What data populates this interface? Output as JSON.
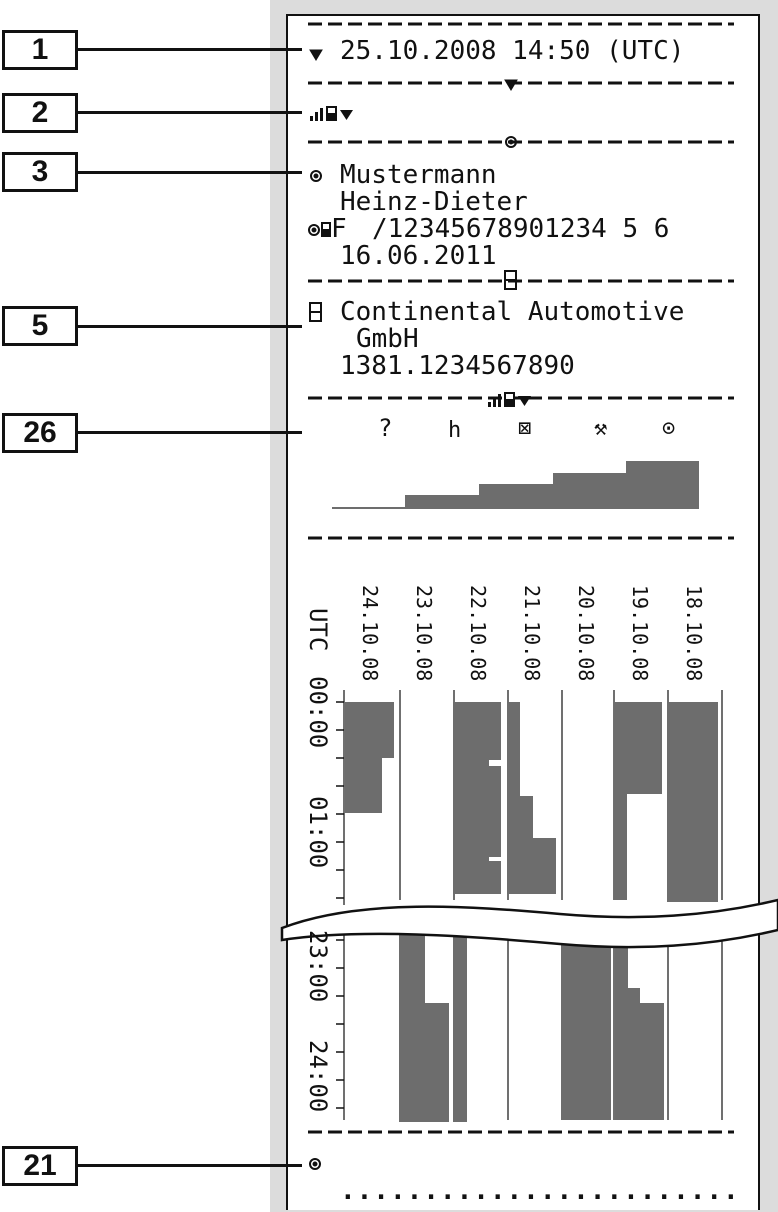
{
  "callouts": [
    "1",
    "2",
    "3",
    "5",
    "26",
    "21"
  ],
  "header": {
    "datetime": "25.10.2008 14:50 (UTC)"
  },
  "driver": {
    "surname": "Mustermann",
    "firstname": "Heinz-Dieter",
    "card_country": "F",
    "card_number": "/12345678901234 5 6",
    "expiry": "16.06.2011"
  },
  "manufacturer": {
    "name_line1": "Continental Automotive",
    "name_line2": "GmbH",
    "part_number": "1381.1234567890"
  },
  "activity_symbols": [
    "?",
    "h",
    "⊠",
    "⚒",
    "⊙"
  ],
  "chart_data": {
    "type": "bar",
    "x_axis_label": "UTC",
    "day_labels": [
      "24.10.08",
      "23.10.08",
      "22.10.08",
      "21.10.08",
      "20.10.08",
      "19.10.08",
      "18.10.08"
    ],
    "time_ticks_top": [
      "00:00",
      "01:00"
    ],
    "time_ticks_bottom": [
      "23:00",
      "24:00"
    ],
    "summary_levels": [
      1,
      2,
      3,
      4,
      5
    ]
  },
  "footer": {
    "dots": "........................"
  },
  "colors": {
    "bar": "#6d6d6d",
    "ink": "#111111",
    "paper_bg": "#dcdcdc"
  }
}
